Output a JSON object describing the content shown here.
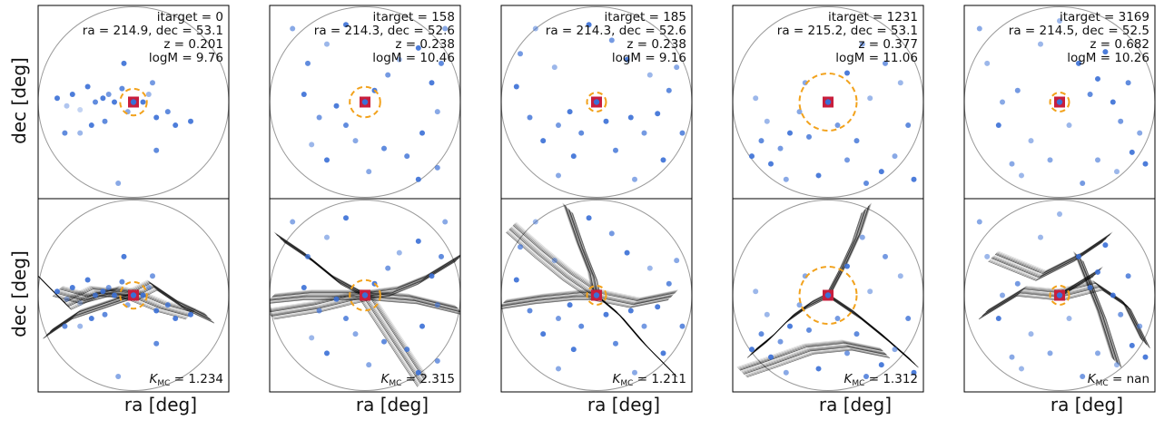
{
  "figure": {
    "ylabel_top": "dec [deg]",
    "ylabel_bottom": "dec [deg]",
    "xlabel": "ra [deg]"
  },
  "colors": {
    "point": "#3a6fd6",
    "target_square": "#c81e3c",
    "aperture": "#f2a21c",
    "circle": "#9a9a9a",
    "filament": "#000000"
  },
  "chart_data": [
    {
      "type": "scatter",
      "panel": 1,
      "annotation": {
        "itarget": "itarget = 0",
        "coords": "ra = 214.9, dec = 53.1",
        "z": "z = 0.201",
        "logM": "logM = 9.76"
      },
      "kappa": "1.234",
      "target": [
        0.5,
        0.5
      ],
      "aperture_radius": 0.07,
      "points": [
        [
          0.1,
          0.48,
          0.9
        ],
        [
          0.15,
          0.52,
          0.4
        ],
        [
          0.18,
          0.46,
          0.9
        ],
        [
          0.22,
          0.54,
          0.3
        ],
        [
          0.26,
          0.42,
          0.9
        ],
        [
          0.3,
          0.5,
          0.8
        ],
        [
          0.34,
          0.48,
          0.9
        ],
        [
          0.37,
          0.46,
          0.7
        ],
        [
          0.4,
          0.5,
          0.9
        ],
        [
          0.44,
          0.43,
          0.8
        ],
        [
          0.47,
          0.55,
          0.6
        ],
        [
          0.55,
          0.5,
          0.9
        ],
        [
          0.58,
          0.46,
          0.5
        ],
        [
          0.62,
          0.58,
          0.9
        ],
        [
          0.68,
          0.55,
          0.8
        ],
        [
          0.72,
          0.62,
          0.9
        ],
        [
          0.8,
          0.6,
          0.9
        ],
        [
          0.6,
          0.4,
          0.7
        ],
        [
          0.35,
          0.6,
          0.8
        ],
        [
          0.28,
          0.62,
          0.9
        ],
        [
          0.22,
          0.66,
          0.5
        ],
        [
          0.45,
          0.3,
          0.9
        ],
        [
          0.62,
          0.75,
          0.8
        ],
        [
          0.42,
          0.92,
          0.6
        ],
        [
          0.14,
          0.66,
          0.8
        ]
      ],
      "filaments": [
        [
          [
            0.1,
            0.48
          ],
          [
            0.25,
            0.52
          ],
          [
            0.4,
            0.48
          ],
          [
            0.5,
            0.5
          ],
          [
            0.65,
            0.56
          ],
          [
            0.8,
            0.6
          ]
        ],
        [
          [
            0.0,
            0.4
          ],
          [
            0.15,
            0.55
          ],
          [
            0.3,
            0.48
          ],
          [
            0.5,
            0.5
          ]
        ],
        [
          [
            0.05,
            0.7
          ],
          [
            0.2,
            0.6
          ],
          [
            0.35,
            0.55
          ],
          [
            0.5,
            0.5
          ]
        ],
        [
          [
            0.5,
            0.5
          ],
          [
            0.6,
            0.45
          ],
          [
            0.75,
            0.55
          ],
          [
            0.9,
            0.62
          ]
        ]
      ]
    },
    {
      "type": "scatter",
      "panel": 2,
      "annotation": {
        "itarget": "itarget = 158",
        "coords": "ra = 214.3, dec = 52.6",
        "z": "z = 0.238",
        "logM": "logM = 10.46"
      },
      "kappa": "2.315",
      "target": [
        0.5,
        0.5
      ],
      "aperture_radius": 0.08,
      "points": [
        [
          0.12,
          0.12,
          0.6
        ],
        [
          0.2,
          0.3,
          0.8
        ],
        [
          0.3,
          0.2,
          0.5
        ],
        [
          0.18,
          0.46,
          0.9
        ],
        [
          0.26,
          0.58,
          0.7
        ],
        [
          0.35,
          0.52,
          0.9
        ],
        [
          0.4,
          0.62,
          0.8
        ],
        [
          0.45,
          0.7,
          0.6
        ],
        [
          0.55,
          0.44,
          0.9
        ],
        [
          0.62,
          0.36,
          0.7
        ],
        [
          0.68,
          0.28,
          0.5
        ],
        [
          0.78,
          0.22,
          0.9
        ],
        [
          0.85,
          0.4,
          0.9
        ],
        [
          0.9,
          0.3,
          0.8
        ],
        [
          0.88,
          0.55,
          0.6
        ],
        [
          0.8,
          0.66,
          0.9
        ],
        [
          0.72,
          0.78,
          0.8
        ],
        [
          0.78,
          0.9,
          0.9
        ],
        [
          0.88,
          0.84,
          0.7
        ],
        [
          0.3,
          0.8,
          0.9
        ],
        [
          0.22,
          0.72,
          0.5
        ],
        [
          0.6,
          0.74,
          0.8
        ],
        [
          0.52,
          0.86,
          0.6
        ],
        [
          0.4,
          0.1,
          0.9
        ],
        [
          0.92,
          0.12,
          0.6
        ]
      ],
      "filaments": [
        [
          [
            0.0,
            0.52
          ],
          [
            0.2,
            0.5
          ],
          [
            0.35,
            0.5
          ],
          [
            0.5,
            0.5
          ],
          [
            0.65,
            0.48
          ],
          [
            0.8,
            0.42
          ],
          [
            1.0,
            0.3
          ]
        ],
        [
          [
            0.05,
            0.2
          ],
          [
            0.2,
            0.3
          ],
          [
            0.35,
            0.42
          ],
          [
            0.5,
            0.5
          ]
        ],
        [
          [
            0.5,
            0.5
          ],
          [
            0.6,
            0.65
          ],
          [
            0.7,
            0.8
          ],
          [
            0.8,
            0.95
          ]
        ],
        [
          [
            0.0,
            0.6
          ],
          [
            0.25,
            0.56
          ],
          [
            0.5,
            0.5
          ],
          [
            0.75,
            0.52
          ],
          [
            1.0,
            0.58
          ]
        ]
      ]
    },
    {
      "type": "scatter",
      "panel": 3,
      "annotation": {
        "itarget": "itarget = 185",
        "coords": "ra = 214.3, dec = 52.6",
        "z": "z = 0.238",
        "logM": "logM = 9.16"
      },
      "kappa": "1.211",
      "target": [
        0.5,
        0.5
      ],
      "aperture_radius": 0.05,
      "points": [
        [
          0.1,
          0.25,
          0.7
        ],
        [
          0.18,
          0.12,
          0.5
        ],
        [
          0.08,
          0.42,
          0.9
        ],
        [
          0.15,
          0.58,
          0.8
        ],
        [
          0.22,
          0.7,
          0.9
        ],
        [
          0.3,
          0.62,
          0.7
        ],
        [
          0.36,
          0.55,
          0.9
        ],
        [
          0.42,
          0.66,
          0.8
        ],
        [
          0.38,
          0.78,
          0.9
        ],
        [
          0.3,
          0.88,
          0.6
        ],
        [
          0.55,
          0.6,
          0.9
        ],
        [
          0.6,
          0.75,
          0.8
        ],
        [
          0.68,
          0.58,
          0.9
        ],
        [
          0.75,
          0.66,
          0.7
        ],
        [
          0.82,
          0.56,
          0.9
        ],
        [
          0.88,
          0.44,
          0.8
        ],
        [
          0.92,
          0.32,
          0.6
        ],
        [
          0.78,
          0.36,
          0.5
        ],
        [
          0.66,
          0.28,
          0.9
        ],
        [
          0.58,
          0.18,
          0.7
        ],
        [
          0.46,
          0.1,
          0.9
        ],
        [
          0.28,
          0.32,
          0.5
        ],
        [
          0.85,
          0.8,
          0.9
        ],
        [
          0.7,
          0.9,
          0.6
        ],
        [
          0.95,
          0.66,
          0.8
        ]
      ],
      "filaments": [
        [
          [
            0.0,
            0.55
          ],
          [
            0.2,
            0.52
          ],
          [
            0.4,
            0.5
          ],
          [
            0.5,
            0.5
          ],
          [
            0.7,
            0.54
          ],
          [
            0.9,
            0.5
          ]
        ],
        [
          [
            0.35,
            0.05
          ],
          [
            0.42,
            0.25
          ],
          [
            0.48,
            0.4
          ],
          [
            0.5,
            0.5
          ]
        ],
        [
          [
            0.05,
            0.15
          ],
          [
            0.2,
            0.28
          ],
          [
            0.35,
            0.4
          ],
          [
            0.5,
            0.5
          ]
        ],
        [
          [
            0.5,
            0.5
          ],
          [
            0.62,
            0.6
          ],
          [
            0.75,
            0.75
          ],
          [
            0.9,
            0.9
          ]
        ]
      ]
    },
    {
      "type": "scatter",
      "panel": 4,
      "annotation": {
        "itarget": "itarget = 1231",
        "coords": "ra = 215.2, dec = 53.1",
        "z": "z = 0.377",
        "logM": "logM = 11.06"
      },
      "kappa": "1.312",
      "target": [
        0.5,
        0.5
      ],
      "aperture_radius": 0.15,
      "points": [
        [
          0.1,
          0.78,
          0.9
        ],
        [
          0.15,
          0.7,
          0.8
        ],
        [
          0.2,
          0.82,
          0.9
        ],
        [
          0.25,
          0.74,
          0.7
        ],
        [
          0.3,
          0.66,
          0.9
        ],
        [
          0.18,
          0.6,
          0.5
        ],
        [
          0.35,
          0.55,
          0.6
        ],
        [
          0.4,
          0.68,
          0.8
        ],
        [
          0.28,
          0.9,
          0.6
        ],
        [
          0.45,
          0.88,
          0.9
        ],
        [
          0.6,
          0.8,
          0.7
        ],
        [
          0.7,
          0.92,
          0.8
        ],
        [
          0.78,
          0.86,
          0.9
        ],
        [
          0.85,
          0.78,
          0.6
        ],
        [
          0.92,
          0.62,
          0.8
        ],
        [
          0.88,
          0.4,
          0.5
        ],
        [
          0.8,
          0.3,
          0.7
        ],
        [
          0.68,
          0.2,
          0.6
        ],
        [
          0.6,
          0.35,
          0.9
        ],
        [
          0.72,
          0.48,
          0.5
        ],
        [
          0.55,
          0.62,
          0.7
        ],
        [
          0.38,
          0.4,
          0.6
        ],
        [
          0.95,
          0.9,
          0.9
        ],
        [
          0.12,
          0.48,
          0.5
        ],
        [
          0.65,
          0.7,
          0.8
        ]
      ],
      "filaments": [
        [
          [
            0.1,
            0.8
          ],
          [
            0.2,
            0.72
          ],
          [
            0.3,
            0.62
          ],
          [
            0.4,
            0.55
          ],
          [
            0.5,
            0.5
          ]
        ],
        [
          [
            0.05,
            0.9
          ],
          [
            0.2,
            0.85
          ],
          [
            0.4,
            0.78
          ],
          [
            0.6,
            0.76
          ],
          [
            0.8,
            0.8
          ]
        ],
        [
          [
            0.5,
            0.5
          ],
          [
            0.58,
            0.35
          ],
          [
            0.65,
            0.2
          ],
          [
            0.7,
            0.05
          ]
        ],
        [
          [
            0.5,
            0.5
          ],
          [
            0.65,
            0.6
          ],
          [
            0.8,
            0.72
          ],
          [
            0.95,
            0.85
          ]
        ]
      ]
    },
    {
      "type": "scatter",
      "panel": 5,
      "annotation": {
        "itarget": "itarget = 3169",
        "coords": "ra = 214.5, dec = 52.5",
        "z": "z = 0.682",
        "logM": "logM = 10.26"
      },
      "kappa": "nan",
      "target": [
        0.5,
        0.5
      ],
      "aperture_radius": 0.05,
      "points": [
        [
          0.12,
          0.3,
          0.5
        ],
        [
          0.2,
          0.5,
          0.6
        ],
        [
          0.18,
          0.62,
          0.9
        ],
        [
          0.28,
          0.44,
          0.7
        ],
        [
          0.35,
          0.7,
          0.5
        ],
        [
          0.6,
          0.3,
          0.9
        ],
        [
          0.66,
          0.46,
          0.8
        ],
        [
          0.7,
          0.38,
          0.9
        ],
        [
          0.74,
          0.24,
          0.9
        ],
        [
          0.78,
          0.5,
          0.9
        ],
        [
          0.82,
          0.6,
          0.7
        ],
        [
          0.86,
          0.4,
          0.8
        ],
        [
          0.92,
          0.66,
          0.6
        ],
        [
          0.88,
          0.76,
          0.9
        ],
        [
          0.95,
          0.82,
          0.9
        ],
        [
          0.8,
          0.86,
          0.5
        ],
        [
          0.7,
          0.8,
          0.6
        ],
        [
          0.55,
          0.62,
          0.5
        ],
        [
          0.45,
          0.8,
          0.6
        ],
        [
          0.3,
          0.88,
          0.5
        ],
        [
          0.62,
          0.92,
          0.7
        ],
        [
          0.4,
          0.2,
          0.5
        ],
        [
          0.08,
          0.12,
          0.6
        ],
        [
          0.5,
          0.08,
          0.5
        ],
        [
          0.25,
          0.82,
          0.6
        ]
      ],
      "filaments": [
        [
          [
            0.1,
            0.6
          ],
          [
            0.3,
            0.48
          ],
          [
            0.5,
            0.5
          ],
          [
            0.7,
            0.38
          ]
        ],
        [
          [
            0.5,
            0.5
          ],
          [
            0.7,
            0.45
          ],
          [
            0.85,
            0.55
          ],
          [
            0.95,
            0.75
          ]
        ],
        [
          [
            0.15,
            0.3
          ],
          [
            0.4,
            0.4
          ],
          [
            0.6,
            0.3
          ],
          [
            0.75,
            0.2
          ]
        ],
        [
          [
            0.6,
            0.3
          ],
          [
            0.72,
            0.6
          ],
          [
            0.8,
            0.85
          ]
        ]
      ]
    }
  ]
}
